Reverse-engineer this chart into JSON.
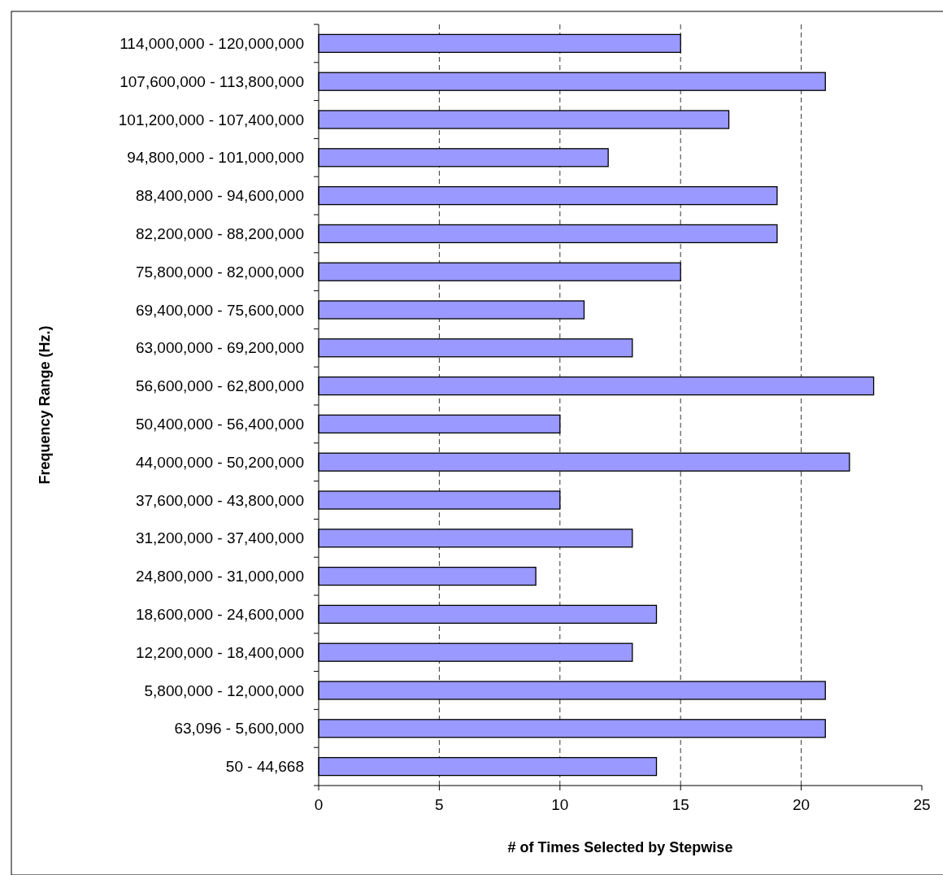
{
  "chart_data": {
    "type": "bar",
    "orientation": "horizontal",
    "xlabel": "# of Times Selected by Stepwise",
    "ylabel": "Frequency Range (Hz.)",
    "categories": [
      "114,000,000 - 120,000,000",
      "107,600,000 - 113,800,000",
      "101,200,000 - 107,400,000",
      "94,800,000 - 101,000,000",
      "88,400,000 - 94,600,000",
      "82,200,000 - 88,200,000",
      "75,800,000 - 82,000,000",
      "69,400,000 - 75,600,000",
      "63,000,000 - 69,200,000",
      "56,600,000 - 62,800,000",
      "50,400,000 - 56,400,000",
      "44,000,000 - 50,200,000",
      "37,600,000 - 43,800,000",
      "31,200,000 - 37,400,000",
      "24,800,000 - 31,000,000",
      "18,600,000 - 24,600,000",
      "12,200,000 - 18,400,000",
      "5,800,000 - 12,000,000",
      "63,096 - 5,600,000",
      "50 - 44,668"
    ],
    "values": [
      15,
      21,
      17,
      12,
      19,
      19,
      15,
      11,
      13,
      23,
      10,
      22,
      10,
      13,
      9,
      14,
      13,
      21,
      21,
      14
    ],
    "color": "#9999ff",
    "xlim": [
      0,
      25
    ],
    "xticks": [
      0,
      5,
      10,
      15,
      20,
      25
    ],
    "grid": "x"
  }
}
